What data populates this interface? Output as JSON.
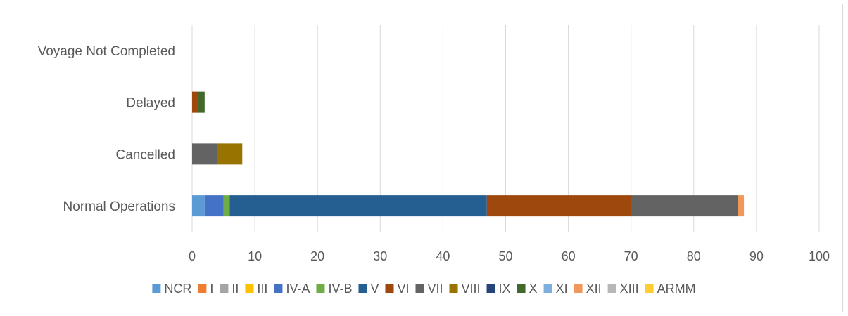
{
  "chart_data": {
    "type": "bar",
    "orientation": "horizontal",
    "stacked": true,
    "title": "",
    "xlabel": "",
    "ylabel": "",
    "categories": [
      "Normal Operations",
      "Cancelled",
      "Delayed",
      "Voyage Not Completed"
    ],
    "xlim": [
      0,
      100
    ],
    "xticks": [
      "0",
      "10",
      "20",
      "30",
      "40",
      "50",
      "60",
      "70",
      "80",
      "90",
      "100"
    ],
    "grid": true,
    "legend": "bottom",
    "series": [
      {
        "name": "NCR",
        "color": "#5b9bd5",
        "values": [
          2,
          0,
          0,
          0
        ]
      },
      {
        "name": "I",
        "color": "#ed7d31",
        "values": [
          0,
          0,
          0,
          0
        ]
      },
      {
        "name": "II",
        "color": "#a5a5a5",
        "values": [
          0,
          0,
          0,
          0
        ]
      },
      {
        "name": "III",
        "color": "#ffc000",
        "values": [
          0,
          0,
          0,
          0
        ]
      },
      {
        "name": "IV-A",
        "color": "#4472c4",
        "values": [
          3,
          0,
          0,
          0
        ]
      },
      {
        "name": "IV-B",
        "color": "#70ad47",
        "values": [
          1,
          0,
          0,
          0
        ]
      },
      {
        "name": "V",
        "color": "#255e91",
        "values": [
          41,
          0,
          0,
          0
        ]
      },
      {
        "name": "VI",
        "color": "#9e480e",
        "values": [
          23,
          0,
          1,
          0
        ]
      },
      {
        "name": "VII",
        "color": "#636363",
        "values": [
          17,
          4,
          0,
          0
        ]
      },
      {
        "name": "VIII",
        "color": "#997300",
        "values": [
          0,
          4,
          0,
          0
        ]
      },
      {
        "name": "IX",
        "color": "#264478",
        "values": [
          0,
          0,
          0,
          0
        ]
      },
      {
        "name": "X",
        "color": "#43682b",
        "values": [
          0,
          0,
          1,
          0
        ]
      },
      {
        "name": "XI",
        "color": "#7cafdd",
        "values": [
          0,
          0,
          0,
          0
        ]
      },
      {
        "name": "XII",
        "color": "#f1975a",
        "values": [
          1,
          0,
          0,
          0
        ]
      },
      {
        "name": "XIII",
        "color": "#b7b7b7",
        "values": [
          0,
          0,
          0,
          0
        ]
      },
      {
        "name": "ARMM",
        "color": "#ffcd33",
        "values": [
          0,
          0,
          0,
          0
        ]
      }
    ]
  }
}
